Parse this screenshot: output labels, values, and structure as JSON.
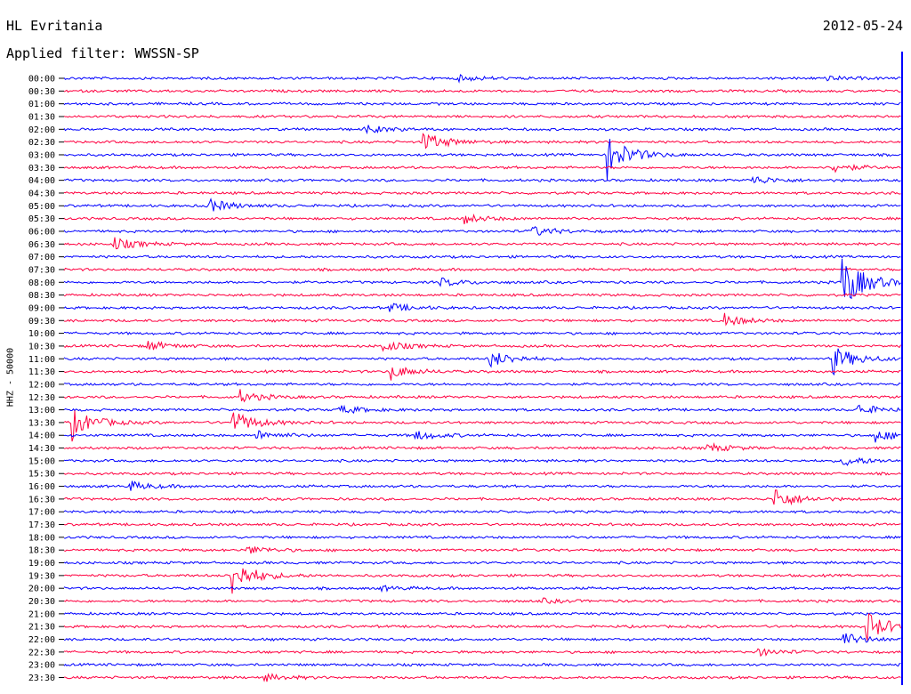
{
  "header": {
    "station": "HL Evritania",
    "filter": "Applied filter: WWSSN-SP",
    "date": "2012-05-24",
    "channel": "HHZ - 50000"
  },
  "colors": {
    "trace_a": "#0000ff",
    "trace_b": "#ff0040"
  },
  "chart_data": {
    "type": "line",
    "title": "HL Evritania",
    "ylabel": "HHZ - 50000",
    "row_labels": [
      "00:00",
      "00:30",
      "01:00",
      "01:30",
      "02:00",
      "02:30",
      "03:00",
      "03:30",
      "04:00",
      "04:30",
      "05:00",
      "05:30",
      "06:00",
      "06:30",
      "07:00",
      "07:30",
      "08:00",
      "08:30",
      "09:00",
      "09:30",
      "10:00",
      "10:30",
      "11:00",
      "11:30",
      "12:00",
      "12:30",
      "13:00",
      "13:30",
      "14:00",
      "14:30",
      "15:00",
      "15:30",
      "16:00",
      "16:30",
      "17:00",
      "17:30",
      "18:00",
      "18:30",
      "19:00",
      "19:30",
      "20:00",
      "20:30",
      "21:00",
      "21:30",
      "22:00",
      "22:30",
      "23:00",
      "23:30"
    ],
    "row_colors": [
      "blue",
      "red"
    ],
    "events": [
      {
        "row": 0,
        "x": 0.47,
        "amp": 4
      },
      {
        "row": 0,
        "x": 0.91,
        "amp": 3
      },
      {
        "row": 4,
        "x": 0.36,
        "amp": 6
      },
      {
        "row": 5,
        "x": 0.43,
        "amp": 14
      },
      {
        "row": 6,
        "x": 0.65,
        "amp": 28
      },
      {
        "row": 7,
        "x": 0.92,
        "amp": 6
      },
      {
        "row": 8,
        "x": 0.82,
        "amp": 7
      },
      {
        "row": 10,
        "x": 0.17,
        "amp": 11
      },
      {
        "row": 11,
        "x": 0.48,
        "amp": 6
      },
      {
        "row": 12,
        "x": 0.56,
        "amp": 7
      },
      {
        "row": 13,
        "x": 0.06,
        "amp": 9
      },
      {
        "row": 16,
        "x": 0.45,
        "amp": 6
      },
      {
        "row": 16,
        "x": 0.93,
        "amp": 40
      },
      {
        "row": 18,
        "x": 0.39,
        "amp": 6
      },
      {
        "row": 19,
        "x": 0.79,
        "amp": 8
      },
      {
        "row": 21,
        "x": 0.1,
        "amp": 7
      },
      {
        "row": 21,
        "x": 0.38,
        "amp": 8
      },
      {
        "row": 22,
        "x": 0.51,
        "amp": 12
      },
      {
        "row": 22,
        "x": 0.92,
        "amp": 18
      },
      {
        "row": 23,
        "x": 0.39,
        "amp": 10
      },
      {
        "row": 25,
        "x": 0.21,
        "amp": 8
      },
      {
        "row": 26,
        "x": 0.33,
        "amp": 6
      },
      {
        "row": 26,
        "x": 0.95,
        "amp": 7
      },
      {
        "row": 27,
        "x": 0.01,
        "amp": 20
      },
      {
        "row": 27,
        "x": 0.2,
        "amp": 18
      },
      {
        "row": 28,
        "x": 0.23,
        "amp": 7
      },
      {
        "row": 28,
        "x": 0.42,
        "amp": 7
      },
      {
        "row": 28,
        "x": 0.97,
        "amp": 8
      },
      {
        "row": 29,
        "x": 0.77,
        "amp": 6
      },
      {
        "row": 30,
        "x": 0.93,
        "amp": 8
      },
      {
        "row": 32,
        "x": 0.08,
        "amp": 6
      },
      {
        "row": 33,
        "x": 0.85,
        "amp": 14
      },
      {
        "row": 37,
        "x": 0.22,
        "amp": 6
      },
      {
        "row": 39,
        "x": 0.2,
        "amp": 25
      },
      {
        "row": 40,
        "x": 0.38,
        "amp": 3
      },
      {
        "row": 41,
        "x": 0.57,
        "amp": 3
      },
      {
        "row": 43,
        "x": 0.96,
        "amp": 20
      },
      {
        "row": 44,
        "x": 0.93,
        "amp": 10
      },
      {
        "row": 45,
        "x": 0.83,
        "amp": 5
      },
      {
        "row": 47,
        "x": 0.24,
        "amp": 5
      }
    ]
  }
}
